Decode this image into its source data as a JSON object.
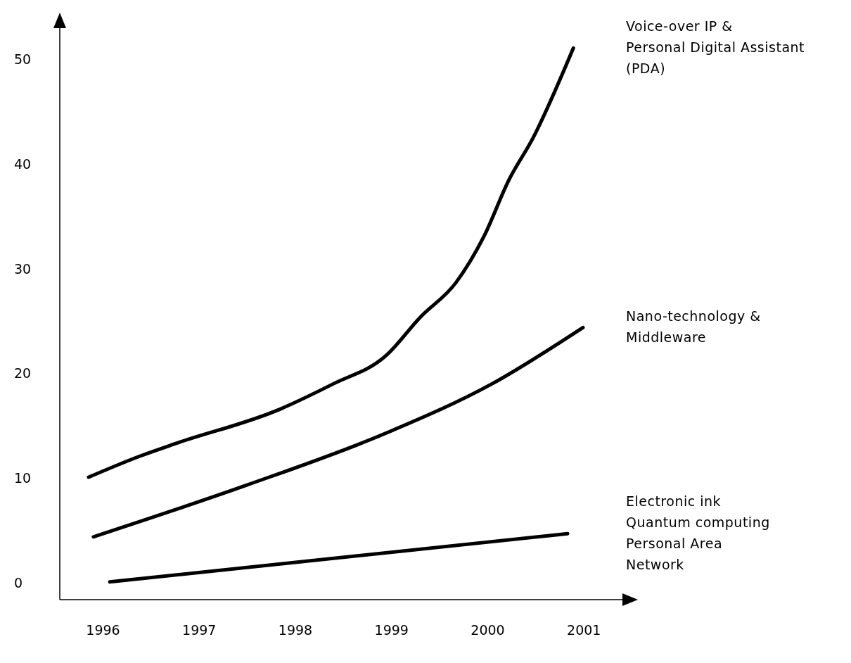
{
  "chart_data": {
    "type": "line",
    "xlim": [
      1995.55,
      2001.4
    ],
    "xticks": [
      1996,
      1997,
      1998,
      1999,
      2000,
      2001
    ],
    "ylim": [
      -1.6,
      53
    ],
    "yticks": [
      0,
      10,
      20,
      30,
      40,
      50
    ],
    "grid": false,
    "marker": "none",
    "line_style": "solid",
    "series": [
      {
        "name": "Voice-over IP &\nPersonal Digital Assistant\n(PDA)",
        "color": "#000000",
        "x": [
          1995.85,
          1996.38,
          1996.75,
          1997.84,
          1998.39,
          1998.94,
          1999.3,
          1999.67,
          1999.96,
          2000.22,
          2000.47,
          2000.89
        ],
        "values": [
          10.1,
          12.1,
          13.3,
          16.6,
          19.0,
          21.7,
          25.4,
          28.7,
          33.1,
          38.5,
          42.5,
          51.1
        ]
      },
      {
        "name": "Nano-technology &\nMiddleware",
        "color": "#000000",
        "x": [
          1995.9,
          1997.48,
          1998.94,
          2000.04,
          2000.99
        ],
        "values": [
          4.4,
          9.3,
          14.3,
          19.0,
          24.4
        ]
      },
      {
        "name": "Electronic ink\nQuantum computing\nPersonal Area\nNetwork",
        "color": "#000000",
        "x": [
          1996.07,
          2000.83
        ],
        "values": [
          0.1,
          4.7
        ]
      }
    ]
  }
}
